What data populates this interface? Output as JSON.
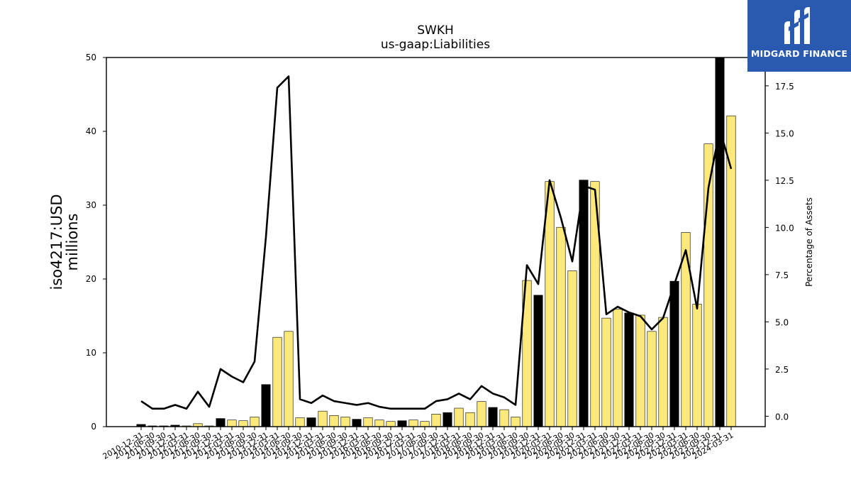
{
  "brand": {
    "name": "MIDGARD FINANCE",
    "bg_color": "#2a5ab0",
    "logo_icon": "midgard-logo-icon"
  },
  "chart_data": {
    "type": "bar",
    "title": "SWKH",
    "subtitle": "us-gaap:Liabilities",
    "ylabel": "iso4217:USD\nmillions",
    "y2label": "Percentage of Assets",
    "ylim": [
      0,
      50
    ],
    "y2lim": [
      -0.55,
      19
    ],
    "yticks": [
      0,
      10,
      20,
      30,
      40,
      50
    ],
    "y2ticks": [
      0.0,
      2.5,
      5.0,
      7.5,
      10.0,
      12.5,
      15.0,
      17.5
    ],
    "y2ticks_labels": [
      "0.0",
      "2.5",
      "5.0",
      "7.5",
      "10.0",
      "12.5",
      "15.0",
      "17.5"
    ],
    "colors": {
      "annual_bar": "#000000",
      "quarter_bar": "#ffe97a",
      "line": "#000000"
    },
    "categories": [
      "2010-12-31",
      "2011-06-30",
      "2011-09-30",
      "2011-12-31",
      "2012-03-31",
      "2012-06-30",
      "2012-09-30",
      "2012-12-31",
      "2013-03-31",
      "2013-06-30",
      "2013-09-30",
      "2013-12-31",
      "2014-03-31",
      "2014-06-30",
      "2014-09-30",
      "2014-12-31",
      "2015-03-31",
      "2015-06-30",
      "2015-09-30",
      "2015-12-31",
      "2016-03-31",
      "2016-06-30",
      "2016-09-30",
      "2016-12-31",
      "2017-03-31",
      "2017-06-30",
      "2017-09-30",
      "2017-12-31",
      "2018-03-31",
      "2018-06-30",
      "2018-09-30",
      "2018-12-31",
      "2019-03-31",
      "2019-06-30",
      "2019-09-30",
      "2019-12-31",
      "2020-03-31",
      "2020-06-30",
      "2020-09-30",
      "2020-12-31",
      "2021-03-31",
      "2021-06-30",
      "2021-09-30",
      "2021-12-31",
      "2022-03-31",
      "2022-06-30",
      "2022-09-30",
      "2022-12-31",
      "2023-03-31",
      "2023-06-30",
      "2023-09-30",
      "2023-12-31",
      "2024-03-31"
    ],
    "series": [
      {
        "type": "bar",
        "values": [
          0.3,
          0.1,
          0.1,
          0.2,
          0.1,
          0.4,
          0.1,
          1.1,
          0.9,
          0.8,
          1.3,
          5.7,
          12.1,
          12.9,
          1.2,
          1.2,
          2.1,
          1.5,
          1.3,
          1.0,
          1.2,
          0.9,
          0.7,
          0.8,
          0.9,
          0.7,
          1.7,
          1.9,
          2.5,
          1.9,
          3.4,
          2.6,
          2.3,
          1.3,
          19.8,
          17.8,
          33.2,
          27.0,
          21.1,
          33.4,
          33.2,
          14.7,
          15.9,
          15.4,
          15.1,
          12.9,
          14.8,
          19.7,
          26.3,
          16.6,
          38.3,
          50.5,
          42.1
        ],
        "is_annual": [
          true,
          true,
          true,
          true,
          false,
          false,
          false,
          true,
          false,
          false,
          false,
          true,
          false,
          false,
          false,
          true,
          false,
          false,
          false,
          true,
          false,
          false,
          false,
          true,
          false,
          false,
          false,
          true,
          false,
          false,
          false,
          true,
          false,
          false,
          false,
          true,
          false,
          false,
          false,
          true,
          false,
          false,
          false,
          true,
          false,
          false,
          false,
          true,
          false,
          false,
          false,
          true,
          false
        ]
      },
      {
        "type": "line",
        "axis": "right",
        "values": [
          0.8,
          0.4,
          0.4,
          0.6,
          0.4,
          1.3,
          0.5,
          2.5,
          2.1,
          1.8,
          2.9,
          9.5,
          17.4,
          18.0,
          0.9,
          0.7,
          1.1,
          0.8,
          0.7,
          0.6,
          0.7,
          0.5,
          0.4,
          0.4,
          0.4,
          0.4,
          0.8,
          0.9,
          1.2,
          0.9,
          1.6,
          1.2,
          1.0,
          0.6,
          8.0,
          7.0,
          12.5,
          10.5,
          8.2,
          12.2,
          12.0,
          5.4,
          5.8,
          5.5,
          5.3,
          4.6,
          5.2,
          7.0,
          8.8,
          5.7,
          12.1,
          15.2,
          13.1
        ]
      }
    ]
  }
}
